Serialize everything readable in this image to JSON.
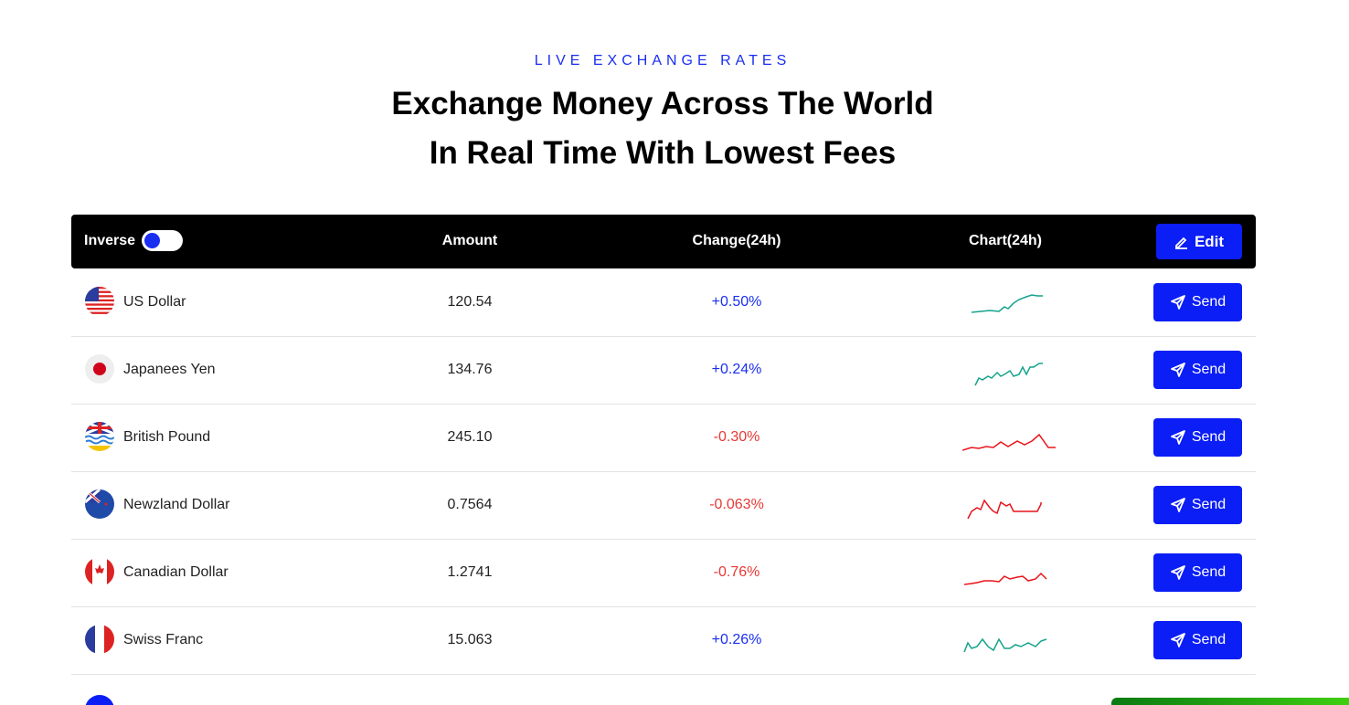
{
  "header": {
    "eyebrow": "LIVE EXCHANGE RATES",
    "title_lines": [
      "Exchange Money Across The World",
      "In Real Time With Lowest Fees"
    ]
  },
  "table": {
    "columns": [
      "Inverse",
      "Amount",
      "Change(24h)",
      "Chart(24h)"
    ],
    "edit_button": "Edit",
    "send_button": "Send",
    "rows": [
      {
        "currency": "US Dollar",
        "amount": "120.54",
        "change": "+0.50%"
      },
      {
        "currency": "Japanees Yen",
        "amount": "134.76",
        "change": "+0.24%"
      },
      {
        "currency": "British Pound",
        "amount": "245.10",
        "change": "-0.30%"
      },
      {
        "currency": "Newzland Dollar",
        "amount": "0.7564",
        "change": "-0.063%"
      },
      {
        "currency": "Canadian Dollar",
        "amount": "1.2741",
        "change": "-0.76%"
      },
      {
        "currency": "Swiss Franc",
        "amount": "15.063",
        "change": "+0.26%"
      }
    ]
  }
}
